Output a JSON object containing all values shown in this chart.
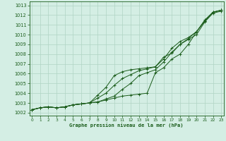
{
  "title": "Graphe pression niveau de la mer (hPa)",
  "xlabel_ticks": [
    0,
    1,
    2,
    3,
    4,
    5,
    6,
    7,
    8,
    9,
    10,
    11,
    12,
    13,
    14,
    15,
    16,
    17,
    18,
    19,
    20,
    21,
    22,
    23
  ],
  "yticks": [
    1002,
    1003,
    1004,
    1005,
    1006,
    1007,
    1008,
    1009,
    1010,
    1011,
    1012,
    1013
  ],
  "ylim": [
    1001.7,
    1013.4
  ],
  "xlim": [
    -0.3,
    23.3
  ],
  "background_color": "#d4eee4",
  "grid_color": "#b0d4c4",
  "line_color": "#1a5c1a",
  "line1": [
    1002.3,
    1002.5,
    1002.6,
    1002.5,
    1002.6,
    1002.8,
    1002.9,
    1003.0,
    1003.1,
    1003.3,
    1003.5,
    1003.7,
    1003.8,
    1003.9,
    1004.0,
    1006.1,
    1006.6,
    1007.5,
    1008.0,
    1009.0,
    1010.3,
    1011.4,
    1012.3,
    1012.5
  ],
  "line2": [
    1002.3,
    1002.5,
    1002.6,
    1002.5,
    1002.6,
    1002.8,
    1002.9,
    1003.0,
    1003.1,
    1003.4,
    1003.7,
    1004.4,
    1005.0,
    1005.8,
    1006.1,
    1006.4,
    1007.2,
    1008.2,
    1009.0,
    1009.5,
    1010.0,
    1011.3,
    1012.2,
    1012.4
  ],
  "line3": [
    1002.3,
    1002.5,
    1002.6,
    1002.5,
    1002.6,
    1002.8,
    1002.9,
    1003.0,
    1003.5,
    1004.0,
    1004.8,
    1005.5,
    1005.9,
    1006.3,
    1006.5,
    1006.7,
    1007.5,
    1008.6,
    1009.3,
    1009.7,
    1010.3,
    1011.4,
    1012.3,
    1012.5
  ],
  "line4": [
    1002.3,
    1002.5,
    1002.6,
    1002.5,
    1002.6,
    1002.8,
    1002.9,
    1003.0,
    1003.8,
    1004.6,
    1005.8,
    1006.2,
    1006.4,
    1006.5,
    1006.6,
    1006.7,
    1007.7,
    1008.1,
    1009.0,
    1009.6,
    1010.3,
    1011.5,
    1012.3,
    1012.5
  ]
}
